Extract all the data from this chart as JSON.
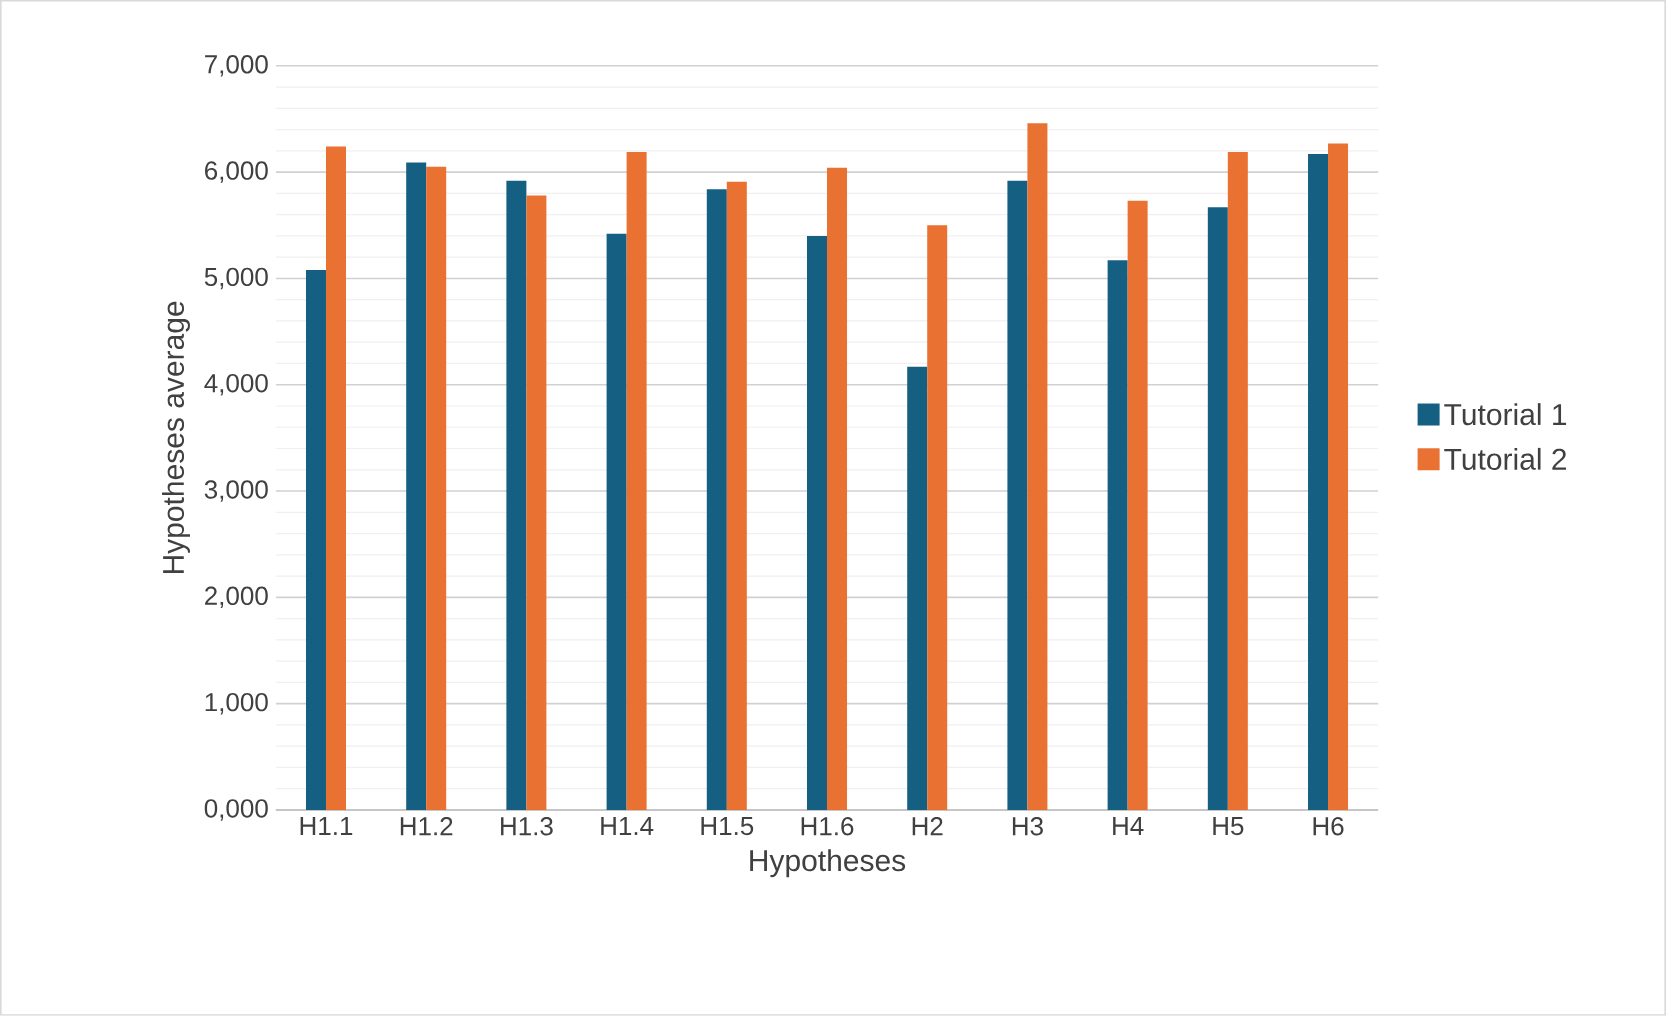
{
  "chart_data": {
    "type": "bar",
    "xlabel": "Hypotheses",
    "ylabel": "Hypotheses average",
    "categories": [
      "H1.1",
      "H1.2",
      "H1.3",
      "H1.4",
      "H1.5",
      "H1.6",
      "H2",
      "H3",
      "H4",
      "H5",
      "H6"
    ],
    "series": [
      {
        "name": "Tutorial 1",
        "color": "#156082",
        "values": [
          5080,
          6090,
          5920,
          5420,
          5840,
          5400,
          4170,
          5920,
          5170,
          5670,
          6170
        ]
      },
      {
        "name": "Tutorial 2",
        "color": "#e97132",
        "values": [
          6240,
          6050,
          5780,
          6190,
          5910,
          6040,
          5500,
          6460,
          5730,
          6190,
          6270
        ]
      }
    ],
    "ylim": [
      0,
      7000
    ],
    "yticks": [
      {
        "value": 0,
        "label": "0,000"
      },
      {
        "value": 1000,
        "label": "1,000"
      },
      {
        "value": 2000,
        "label": "2,000"
      },
      {
        "value": 3000,
        "label": "3,000"
      },
      {
        "value": 4000,
        "label": "4,000"
      },
      {
        "value": 5000,
        "label": "5,000"
      },
      {
        "value": 6000,
        "label": "6,000"
      },
      {
        "value": 7000,
        "label": "7,000"
      }
    ],
    "grid": "y",
    "legend": "right"
  }
}
